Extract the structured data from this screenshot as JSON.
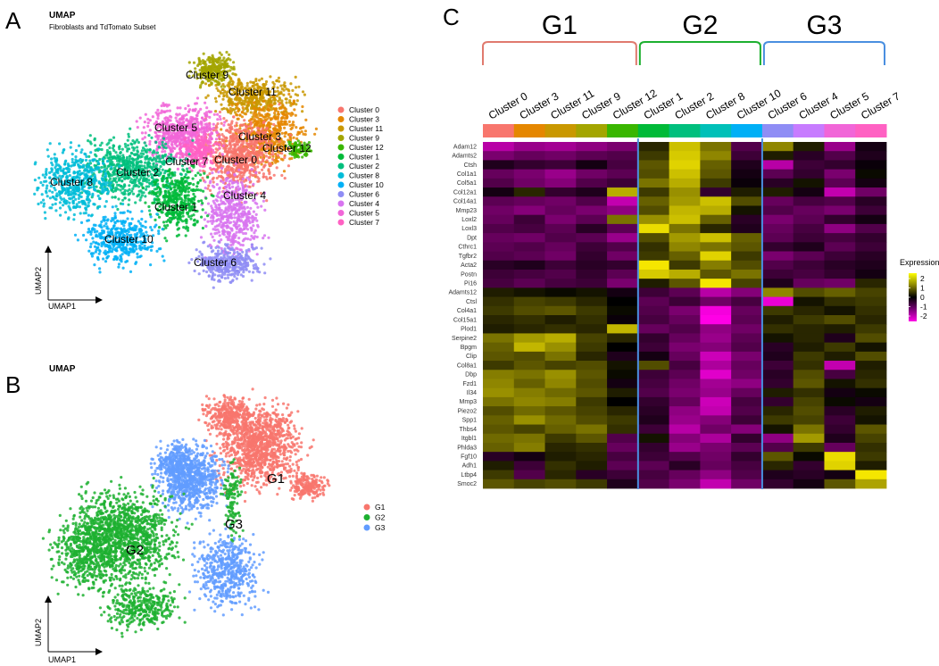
{
  "panels": {
    "A": {
      "letter": "A",
      "title": "UMAP",
      "subtitle": "Fibroblasts and TdTomato Subset",
      "xaxis": "UMAP1",
      "yaxis": "UMAP2",
      "legend": [
        {
          "name": "Cluster 0",
          "color": "#F8766D"
        },
        {
          "name": "Cluster 3",
          "color": "#E58700"
        },
        {
          "name": "Cluster 11",
          "color": "#C99800"
        },
        {
          "name": "Cluster 9",
          "color": "#A3A500"
        },
        {
          "name": "Cluster 12",
          "color": "#39B600"
        },
        {
          "name": "Cluster 1",
          "color": "#00BA38"
        },
        {
          "name": "Cluster 2",
          "color": "#00BF7D"
        },
        {
          "name": "Cluster 8",
          "color": "#00BCD8"
        },
        {
          "name": "Cluster 10",
          "color": "#00B0F6"
        },
        {
          "name": "Cluster 6",
          "color": "#8F8DF5"
        },
        {
          "name": "Cluster 4",
          "color": "#D874F0"
        },
        {
          "name": "Cluster 5",
          "color": "#F166D8"
        },
        {
          "name": "Cluster 7",
          "color": "#FF61C3"
        }
      ],
      "blob_labels": [
        "Cluster 9",
        "Cluster 11",
        "Cluster 5",
        "Cluster 3",
        "Cluster 12",
        "Cluster 7",
        "Cluster 0",
        "Cluster 2",
        "Cluster 8",
        "Cluster 4",
        "Cluster 1",
        "Cluster 10",
        "Cluster 6"
      ]
    },
    "B": {
      "letter": "B",
      "title": "UMAP",
      "xaxis": "UMAP1",
      "yaxis": "UMAP2",
      "legend": [
        {
          "name": "G1",
          "color": "#F8766D"
        },
        {
          "name": "G2",
          "color": "#1DB030"
        },
        {
          "name": "G3",
          "color": "#619CFF"
        }
      ],
      "blob_labels": [
        "G1",
        "G3",
        "G2"
      ]
    },
    "C": {
      "letter": "C"
    }
  },
  "chart_data": [
    {
      "type": "scatter",
      "title": "UMAP",
      "subtitle": "Fibroblasts and TdTomato Subset",
      "xlabel": "UMAP1",
      "ylabel": "UMAP2",
      "series": [
        "Cluster 0",
        "Cluster 3",
        "Cluster 11",
        "Cluster 9",
        "Cluster 12",
        "Cluster 1",
        "Cluster 2",
        "Cluster 8",
        "Cluster 10",
        "Cluster 6",
        "Cluster 4",
        "Cluster 5",
        "Cluster 7"
      ]
    },
    {
      "type": "scatter",
      "title": "UMAP",
      "xlabel": "UMAP1",
      "ylabel": "UMAP2",
      "series": [
        "G1",
        "G2",
        "G3"
      ]
    },
    {
      "type": "heatmap",
      "groups": [
        {
          "name": "G1",
          "color": "#E07A6E",
          "columns": [
            "Cluster 0",
            "Cluster 3",
            "Cluster 11",
            "Cluster 9",
            "Cluster 12"
          ]
        },
        {
          "name": "G2",
          "color": "#1DB030",
          "columns": [
            "Cluster 1",
            "Cluster 2",
            "Cluster 8",
            "Cluster 10"
          ]
        },
        {
          "name": "G3",
          "color": "#4A8FE0",
          "columns": [
            "Cluster 6",
            "Cluster 4",
            "Cluster 5",
            "Cluster 7"
          ]
        }
      ],
      "columns": [
        "Cluster 0",
        "Cluster 3",
        "Cluster 11",
        "Cluster 9",
        "Cluster 12",
        "Cluster 1",
        "Cluster 2",
        "Cluster 8",
        "Cluster 10",
        "Cluster 6",
        "Cluster 4",
        "Cluster 5",
        "Cluster 7"
      ],
      "column_colors": [
        "#F8766D",
        "#E58700",
        "#C99800",
        "#A3A500",
        "#39B600",
        "#00BA38",
        "#00BF7D",
        "#00C0B8",
        "#00B0F6",
        "#8F8DF5",
        "#C77CFF",
        "#F166D8",
        "#FF61C3"
      ],
      "genes": [
        "Adam12",
        "Adamts2",
        "Ctsh",
        "Col1a1",
        "Col5a1",
        "Col12a1",
        "Col14a1",
        "Mmp23",
        "Loxl2",
        "Loxl3",
        "Dpt",
        "Cthrc1",
        "Tgfbr2",
        "Acta2",
        "Postn",
        "Pi16",
        "Adamts12",
        "Ctsl",
        "Col4a1",
        "Col15a1",
        "Plod1",
        "Serpine2",
        "Bpgm",
        "Clip",
        "Col8a1",
        "Dbp",
        "Fzd1",
        "Il34",
        "Mmp3",
        "Piezo2",
        "Spp1",
        "Thbs4",
        "Itgbl1",
        "Phlda3",
        "Fgf10",
        "Adh1",
        "Ltbp4",
        "Smoc2"
      ],
      "legend_title": "Expression",
      "legend_ticks": [
        "2",
        "1",
        "0",
        "-1",
        "-2"
      ],
      "color_range": [
        -2.5,
        2.5
      ],
      "values": [
        [
          -1.8,
          -1.5,
          -1.6,
          -1.4,
          -1.2,
          0.4,
          2.0,
          1.2,
          -0.8,
          1.4,
          0.3,
          -1.5,
          -0.2
        ],
        [
          -1.2,
          -1.0,
          -1.1,
          -0.9,
          -0.8,
          0.6,
          2.1,
          1.4,
          -0.6,
          0.3,
          -0.4,
          -0.8,
          -0.3
        ],
        [
          -0.3,
          -0.5,
          -0.6,
          -0.2,
          -0.7,
          0.9,
          2.2,
          1.0,
          -0.3,
          -1.8,
          -0.6,
          -0.5,
          -0.1
        ],
        [
          -1.0,
          -1.2,
          -1.5,
          -1.1,
          -0.9,
          0.8,
          2.0,
          0.9,
          -0.2,
          -0.9,
          -0.5,
          -1.2,
          0.1
        ],
        [
          -0.8,
          -1.1,
          -1.3,
          -0.8,
          -0.6,
          1.2,
          1.8,
          0.6,
          -0.1,
          -0.4,
          0.2,
          -0.9,
          -0.2
        ],
        [
          -0.2,
          0.4,
          -0.5,
          -0.3,
          1.8,
          0.6,
          1.5,
          -0.5,
          0.3,
          0.3,
          -0.2,
          -1.9,
          -1.1
        ],
        [
          -0.9,
          -1.0,
          -1.1,
          -0.8,
          -1.9,
          1.0,
          1.6,
          2.0,
          0.8,
          -1.0,
          -0.7,
          -0.8,
          -0.4
        ],
        [
          -1.1,
          -1.3,
          -1.0,
          -1.2,
          -1.4,
          0.8,
          1.9,
          1.8,
          0.2,
          -0.8,
          -1.0,
          -1.2,
          -0.6
        ],
        [
          -1.0,
          -0.6,
          -1.2,
          -0.9,
          1.2,
          1.5,
          2.0,
          1.0,
          -0.4,
          -1.2,
          -0.9,
          -0.5,
          -0.2
        ],
        [
          -0.8,
          -0.7,
          -0.9,
          -0.4,
          -0.9,
          2.3,
          1.2,
          0.4,
          -0.3,
          -1.0,
          -0.7,
          -1.4,
          -0.8
        ],
        [
          -1.0,
          -1.1,
          -0.8,
          -0.9,
          -1.5,
          0.8,
          1.6,
          2.0,
          1.0,
          -0.9,
          -0.6,
          -0.7,
          -0.5
        ],
        [
          -0.9,
          -0.8,
          -1.0,
          -0.6,
          -0.8,
          0.5,
          1.4,
          1.2,
          0.9,
          -0.5,
          -0.3,
          -0.9,
          -0.6
        ],
        [
          -0.8,
          -0.9,
          -1.1,
          -0.5,
          -1.1,
          0.6,
          1.0,
          2.2,
          0.6,
          -1.2,
          -0.9,
          -0.6,
          -0.4
        ],
        [
          -0.4,
          -0.3,
          -0.6,
          -0.4,
          -0.5,
          2.4,
          0.6,
          1.3,
          0.8,
          -0.8,
          -0.6,
          -0.4,
          -0.3
        ],
        [
          -0.6,
          -0.7,
          -0.8,
          -0.5,
          -0.9,
          2.1,
          1.8,
          0.9,
          1.2,
          -0.6,
          -0.7,
          -0.5,
          -0.2
        ],
        [
          -0.7,
          -0.9,
          -0.7,
          -0.6,
          -1.2,
          0.3,
          0.9,
          2.4,
          0.7,
          -0.3,
          -1.0,
          -1.1,
          0.4
        ],
        [
          0.3,
          0.2,
          0.1,
          0.2,
          -0.2,
          -0.6,
          -0.9,
          -1.8,
          -1.3,
          1.4,
          0.8,
          1.0,
          0.7
        ],
        [
          0.5,
          0.7,
          0.6,
          0.4,
          0.0,
          -0.9,
          -0.6,
          -1.1,
          -0.7,
          -2.3,
          0.2,
          0.5,
          0.6
        ],
        [
          0.6,
          0.8,
          0.9,
          0.6,
          0.1,
          -0.8,
          -1.2,
          -2.4,
          -1.0,
          0.6,
          0.4,
          0.2,
          0.5
        ],
        [
          0.4,
          0.5,
          0.3,
          0.5,
          -0.1,
          -0.7,
          -1.0,
          -2.5,
          -0.9,
          0.3,
          0.6,
          0.8,
          0.4
        ],
        [
          0.3,
          0.4,
          0.5,
          0.4,
          1.9,
          -1.0,
          -0.8,
          -1.4,
          -1.1,
          0.5,
          0.4,
          0.3,
          0.6
        ],
        [
          1.2,
          1.6,
          1.8,
          0.7,
          0.4,
          -0.5,
          -1.0,
          -1.5,
          -0.9,
          0.2,
          0.4,
          -0.3,
          0.8
        ],
        [
          1.0,
          1.9,
          1.5,
          0.6,
          0.0,
          -0.6,
          -1.2,
          -1.3,
          -0.8,
          -0.4,
          0.3,
          0.6,
          0.2
        ],
        [
          0.9,
          0.8,
          1.2,
          0.4,
          -0.3,
          -0.2,
          -1.0,
          -2.0,
          -1.2,
          -0.3,
          0.6,
          0.3,
          0.8
        ],
        [
          0.6,
          0.9,
          0.7,
          0.8,
          0.2,
          0.8,
          -0.7,
          -1.7,
          -1.0,
          -0.6,
          0.5,
          -1.9,
          0.3
        ],
        [
          1.3,
          1.2,
          1.5,
          0.9,
          0.1,
          -0.6,
          -0.9,
          -2.2,
          -1.1,
          -0.4,
          0.8,
          -0.7,
          0.4
        ],
        [
          1.4,
          1.0,
          1.4,
          0.8,
          -0.2,
          -0.7,
          -1.1,
          -1.6,
          -1.4,
          -0.5,
          0.9,
          0.2,
          0.5
        ],
        [
          1.5,
          1.3,
          1.1,
          0.9,
          0.3,
          -0.8,
          -1.2,
          -1.5,
          -1.0,
          0.3,
          0.5,
          -0.2,
          0.1
        ],
        [
          1.2,
          1.4,
          1.3,
          0.6,
          0.0,
          -0.5,
          -1.0,
          -2.0,
          -0.7,
          -0.5,
          0.7,
          0.1,
          -0.2
        ],
        [
          0.8,
          1.1,
          0.9,
          0.7,
          0.4,
          -0.4,
          -1.4,
          -1.9,
          -0.8,
          0.4,
          0.8,
          -0.4,
          0.3
        ],
        [
          1.0,
          1.5,
          1.1,
          0.8,
          0.6,
          -0.3,
          -1.5,
          -1.3,
          -0.6,
          0.6,
          0.7,
          -0.6,
          0.2
        ],
        [
          0.9,
          0.7,
          1.0,
          1.2,
          0.5,
          -0.6,
          -1.8,
          -1.1,
          -1.3,
          0.2,
          1.2,
          -0.5,
          0.9
        ],
        [
          1.1,
          1.2,
          0.6,
          0.9,
          -0.8,
          0.2,
          -1.3,
          -1.7,
          -0.5,
          -1.4,
          1.6,
          -0.3,
          0.7
        ],
        [
          1.0,
          1.3,
          0.4,
          0.5,
          -1.0,
          -0.5,
          -1.5,
          -1.2,
          -0.9,
          -0.8,
          0.6,
          -1.0,
          0.5
        ],
        [
          -0.4,
          -0.2,
          0.3,
          0.4,
          -0.7,
          -0.6,
          -0.8,
          -1.1,
          -0.5,
          0.9,
          0.1,
          2.3,
          0.6
        ],
        [
          0.3,
          -0.6,
          0.5,
          0.3,
          -0.9,
          -0.9,
          -0.4,
          -1.0,
          -0.7,
          0.4,
          -0.5,
          2.2,
          0.3
        ],
        [
          0.6,
          -0.8,
          0.4,
          -0.4,
          -0.6,
          -0.7,
          -1.0,
          -1.4,
          -0.8,
          -0.3,
          -0.4,
          -0.2,
          2.4
        ],
        [
          0.9,
          0.7,
          0.8,
          0.6,
          -0.3,
          -0.8,
          -1.2,
          -1.9,
          -1.1,
          -0.5,
          -0.2,
          0.9,
          1.7
        ]
      ]
    }
  ]
}
